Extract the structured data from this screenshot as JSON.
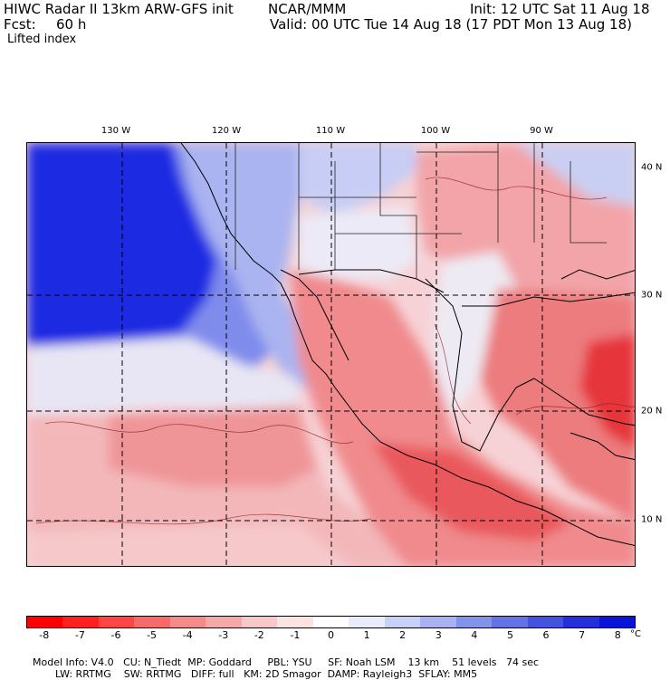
{
  "header": {
    "model": "HIWC Radar II 13km ARW-GFS init",
    "org": "NCAR/MMM",
    "init": "Init: 12 UTC Sat 11 Aug 18",
    "fcst_label": "Fcst:",
    "fcst_value": "60 h",
    "valid": "Valid: 00 UTC Tue 14 Aug 18 (17 PDT Mon 13 Aug 18)",
    "field": "Lifted index"
  },
  "map": {
    "lon_labels": [
      "130 W",
      "120 W",
      "110 W",
      "100 W",
      "90 W"
    ],
    "lat_labels": [
      "40 N",
      "30 N",
      "20 N",
      "10 N"
    ],
    "colors": {
      "strong_positive": "#0a14e0",
      "positive": "#6f7de8",
      "weak_positive": "#d6dcf8",
      "neutral": "#f8f4f6",
      "weak_negative": "#f7c2c4",
      "negative": "#ef7f80",
      "strong_negative": "#e82a2d"
    }
  },
  "colorbar": {
    "colors": [
      "#ff0000",
      "#ff2020",
      "#ff4545",
      "#f86a6a",
      "#f58a8a",
      "#f5a8a8",
      "#f8c8c8",
      "#fbe3e3",
      "#ffffff",
      "#e8ecfb",
      "#c8d0f5",
      "#a8b2f0",
      "#8592ea",
      "#6572e5",
      "#4552e0",
      "#2530dc",
      "#0a14d8"
    ],
    "ticks": [
      "-8",
      "-7",
      "-6",
      "-5",
      "-4",
      "-3",
      "-2",
      "-1",
      "0",
      "1",
      "2",
      "3",
      "4",
      "5",
      "6",
      "7",
      "8"
    ],
    "unit": "°C"
  },
  "footer": {
    "line1": [
      "Model Info: V4.0",
      "CU: N_Tiedt",
      "MP: Goddard",
      "PBL: YSU",
      "SF: Noah LSM",
      "13 km",
      "51 levels",
      "74 sec"
    ],
    "line2": [
      "LW: RRTMG",
      "SW: RRTMG",
      "DIFF: full",
      "KM: 2D Smagor",
      "DAMP: Rayleigh3",
      "SFLAY: MM5"
    ]
  }
}
